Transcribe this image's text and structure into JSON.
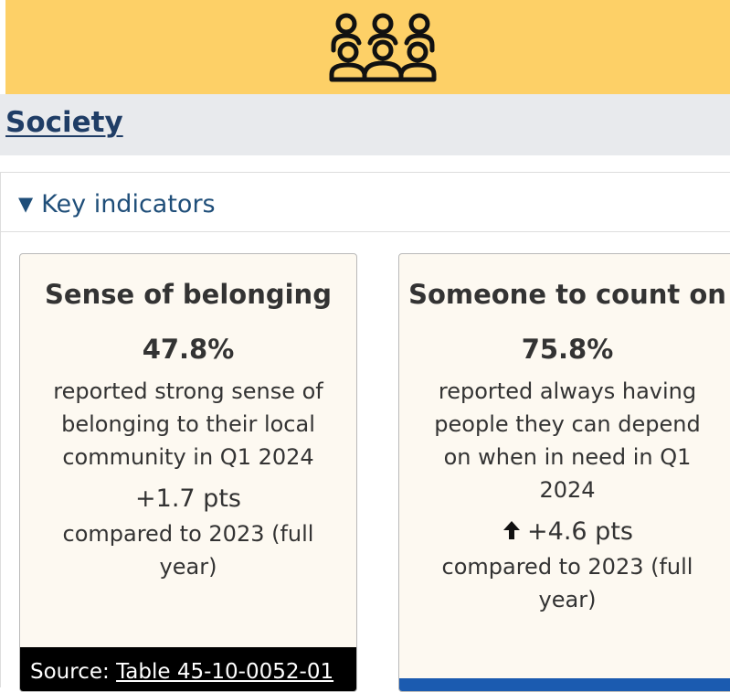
{
  "banner": {
    "icon": "group-of-people-icon",
    "color": "#fdd067"
  },
  "section": {
    "title": "Society"
  },
  "accordion": {
    "summary_icon": "triangle-down-icon",
    "summary_label": "Key indicators"
  },
  "cards": [
    {
      "title": "Sense of belonging",
      "value": "47.8%",
      "description": "reported strong sense of belonging to their local community in Q1 2024",
      "change": "+1.7 pts",
      "comparison": "compared to 2023 (full year)",
      "source_prefix": "Source: ",
      "source_link": "Table 45-10-0052-01"
    },
    {
      "title": "Someone to count on",
      "value": "75.8%",
      "description": "reported always having people they can depend on when in need in Q1 2024",
      "change_icon": "arrow-up-icon",
      "change": "+4.6 pts",
      "comparison": "compared to 2023 (full year)",
      "bar_color": "#1b5bb0"
    }
  ]
}
